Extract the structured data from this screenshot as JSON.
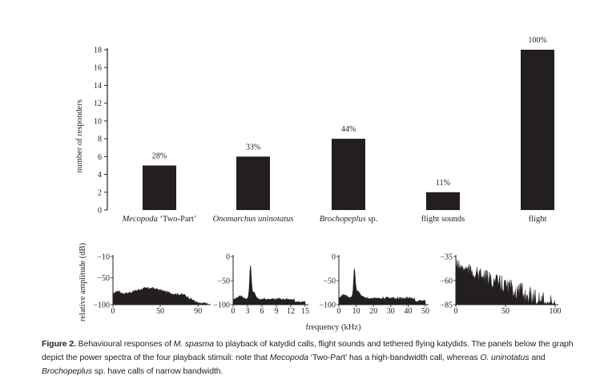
{
  "chart_data": [
    {
      "type": "bar",
      "ylabel": "number of responders",
      "ylim": [
        0,
        18
      ],
      "yticks": [
        0,
        2,
        4,
        6,
        8,
        10,
        12,
        14,
        16,
        18
      ],
      "categories": [
        {
          "parts": [
            {
              "t": "Mecopoda",
              "i": true
            },
            {
              "t": " ‘Two-Part’",
              "i": false
            }
          ]
        },
        {
          "parts": [
            {
              "t": "Onomarchus uninotatus",
              "i": true
            }
          ]
        },
        {
          "parts": [
            {
              "t": "Brochopeplus",
              "i": true
            },
            {
              "t": " sp.",
              "i": false
            }
          ]
        },
        {
          "parts": [
            {
              "t": "flight sounds",
              "i": false
            }
          ]
        },
        {
          "parts": [
            {
              "t": "flight",
              "i": false
            }
          ]
        }
      ],
      "values": [
        5,
        6,
        8,
        2,
        18
      ],
      "data_labels": [
        "28%",
        "33%",
        "44%",
        "11%",
        "100%"
      ],
      "bar_color": "#231f20"
    },
    {
      "type": "area",
      "shared_ylabel": "relative amplitude (dB)",
      "shared_xlabel": "frequency (kHz)",
      "panels": [
        {
          "yticks": [
            -10,
            -50,
            -100
          ],
          "ylim": [
            -100,
            -10
          ],
          "xticks": [
            0,
            50,
            90
          ],
          "xlim": [
            0,
            100
          ],
          "profile": "broad"
        },
        {
          "yticks": [
            0,
            -50,
            -100
          ],
          "ylim": [
            -100,
            0
          ],
          "xticks": [
            0,
            3,
            6,
            9,
            12,
            15
          ],
          "xlim": [
            0,
            15
          ],
          "profile": "narrow-low"
        },
        {
          "yticks": [
            0,
            -50,
            -100
          ],
          "ylim": [
            -100,
            0
          ],
          "xticks": [
            0,
            10,
            20,
            30,
            40,
            50
          ],
          "xlim": [
            0,
            50
          ],
          "profile": "narrow-mid"
        },
        {
          "yticks": [
            -35,
            -60,
            -85
          ],
          "ylim": [
            -85,
            -35
          ],
          "xticks": [
            0,
            50,
            100
          ],
          "xlim": [
            0,
            100
          ],
          "profile": "decay"
        }
      ]
    }
  ],
  "caption": {
    "label": "Figure 2.",
    "parts": [
      {
        "t": " Behavioural responses of ",
        "i": false
      },
      {
        "t": "M. spasma",
        "i": true
      },
      {
        "t": " to playback of katydid calls, flight sounds and tethered flying katydids. The panels below the graph depict the power spectra of the four playback stimuli: note that ",
        "i": false
      },
      {
        "t": "Mecopoda",
        "i": true
      },
      {
        "t": " ‘Two-Part’ has a high-bandwidth call, whereas ",
        "i": false
      },
      {
        "t": "O. uninotatus",
        "i": true
      },
      {
        "t": " and ",
        "i": false
      },
      {
        "t": "Brochopeplus",
        "i": true
      },
      {
        "t": " sp. have calls of narrow bandwidth.",
        "i": false
      }
    ]
  }
}
